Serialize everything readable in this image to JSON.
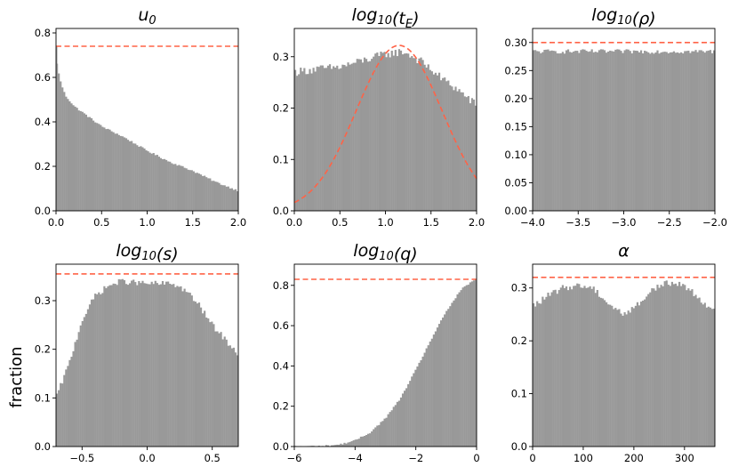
{
  "figure": {
    "ylabel": "fraction",
    "bar_color": "#999999",
    "ref_line_color": "#ff6347"
  },
  "chart_data": [
    {
      "type": "bar",
      "subtype": "histogram",
      "title": "u₀",
      "title_base": "u",
      "title_sub": "0",
      "xlim": [
        0,
        2
      ],
      "ylim": [
        0,
        0.82
      ],
      "xticks": [
        0,
        0.5,
        1,
        1.5,
        2
      ],
      "xtick_labels": [
        "0.0",
        "0.5",
        "1.0",
        "1.5",
        "2.0"
      ],
      "yticks": [
        0,
        0.2,
        0.4,
        0.6,
        0.8
      ],
      "ytick_labels": [
        "0.0",
        "0.2",
        "0.4",
        "0.6",
        "0.8"
      ],
      "reference_hline": 0.74,
      "profile_x": [
        0,
        0.01,
        0.03,
        0.05,
        0.1,
        0.2,
        0.3,
        0.5,
        0.75,
        1.0,
        1.25,
        1.5,
        1.75,
        2.0
      ],
      "profile_y": [
        0.74,
        0.66,
        0.62,
        0.58,
        0.52,
        0.47,
        0.44,
        0.38,
        0.33,
        0.27,
        0.22,
        0.18,
        0.13,
        0.09
      ],
      "n_bins": 100,
      "noise": 0.004
    },
    {
      "type": "bar",
      "subtype": "histogram",
      "title": "log₁₀(t_E)",
      "title_base": "log",
      "title_sub": "10",
      "title_arg_base": "t",
      "title_arg_sub": "E",
      "xlim": [
        0,
        2
      ],
      "ylim": [
        0,
        0.355
      ],
      "xticks": [
        0,
        0.5,
        1,
        1.5,
        2
      ],
      "xtick_labels": [
        "0.0",
        "0.5",
        "1.0",
        "1.5",
        "2.0"
      ],
      "yticks": [
        0,
        0.1,
        0.2,
        0.3
      ],
      "ytick_labels": [
        "0.0",
        "0.1",
        "0.2",
        "0.3"
      ],
      "profile_x": [
        0,
        0.2,
        0.5,
        0.8,
        1.0,
        1.2,
        1.4,
        1.6,
        1.8,
        2.0
      ],
      "profile_y": [
        0.27,
        0.275,
        0.28,
        0.295,
        0.305,
        0.31,
        0.29,
        0.26,
        0.235,
        0.205
      ],
      "n_bins": 100,
      "noise": 0.008,
      "curve": {
        "type": "gaussian",
        "peak": 0.322,
        "mean": 1.15,
        "sigma": 0.47
      }
    },
    {
      "type": "bar",
      "subtype": "histogram",
      "title": "log₁₀(ρ)",
      "title_base": "log",
      "title_sub": "10",
      "title_arg": "ρ",
      "xlim": [
        -4,
        -2
      ],
      "ylim": [
        0,
        0.325
      ],
      "xticks": [
        -4,
        -3.5,
        -3,
        -2.5,
        -2
      ],
      "xtick_labels": [
        "−4.0",
        "−3.5",
        "−3.0",
        "−2.5",
        "−2.0"
      ],
      "yticks": [
        0,
        0.05,
        0.1,
        0.15,
        0.2,
        0.25,
        0.3
      ],
      "ytick_labels": [
        "0.00",
        "0.05",
        "0.10",
        "0.15",
        "0.20",
        "0.25",
        "0.30"
      ],
      "reference_hline": 0.3,
      "profile_x": [
        -4,
        -2
      ],
      "profile_y": [
        0.284,
        0.284
      ],
      "n_bins": 100,
      "noise": 0.004
    },
    {
      "type": "bar",
      "subtype": "histogram",
      "title": "log₁₀(s)",
      "title_base": "log",
      "title_sub": "10",
      "title_arg": "s",
      "xlim": [
        -0.7,
        0.7
      ],
      "ylim": [
        0,
        0.375
      ],
      "xticks": [
        -0.5,
        0,
        0.5
      ],
      "xtick_labels": [
        "−0.5",
        "0.0",
        "0.5"
      ],
      "yticks": [
        0,
        0.1,
        0.2,
        0.3
      ],
      "ytick_labels": [
        "0.0",
        "0.1",
        "0.2",
        "0.3"
      ],
      "reference_hline": 0.355,
      "profile_x": [
        -0.7,
        -0.6,
        -0.5,
        -0.4,
        -0.3,
        -0.2,
        0,
        0.2,
        0.3,
        0.4,
        0.5,
        0.6,
        0.7
      ],
      "profile_y": [
        0.1,
        0.17,
        0.26,
        0.31,
        0.33,
        0.34,
        0.335,
        0.335,
        0.32,
        0.29,
        0.25,
        0.22,
        0.19
      ],
      "n_bins": 100,
      "noise": 0.006
    },
    {
      "type": "bar",
      "subtype": "histogram",
      "title": "log₁₀(q)",
      "title_base": "log",
      "title_sub": "10",
      "title_arg": "q",
      "xlim": [
        -6,
        0
      ],
      "ylim": [
        0,
        0.905
      ],
      "xticks": [
        -6,
        -4,
        -2,
        0
      ],
      "xtick_labels": [
        "−6",
        "−4",
        "−2",
        "0"
      ],
      "yticks": [
        0,
        0.2,
        0.4,
        0.6,
        0.8
      ],
      "ytick_labels": [
        "0.0",
        "0.2",
        "0.4",
        "0.6",
        "0.8"
      ],
      "reference_hline": 0.83,
      "profile_x": [
        -6,
        -5,
        -4.5,
        -4,
        -3.5,
        -3,
        -2.5,
        -2,
        -1.5,
        -1,
        -0.5,
        0
      ],
      "profile_y": [
        0,
        0.003,
        0.01,
        0.03,
        0.07,
        0.14,
        0.24,
        0.38,
        0.53,
        0.67,
        0.78,
        0.835
      ],
      "n_bins": 100,
      "noise": 0.004
    },
    {
      "type": "bar",
      "subtype": "histogram",
      "title": "α",
      "title_base": "α",
      "xlim": [
        0,
        360
      ],
      "ylim": [
        0,
        0.345
      ],
      "xticks": [
        0,
        100,
        200,
        300
      ],
      "xtick_labels": [
        "0",
        "100",
        "200",
        "300"
      ],
      "yticks": [
        0,
        0.1,
        0.2,
        0.3
      ],
      "ytick_labels": [
        "0.0",
        "0.1",
        "0.2",
        "0.3"
      ],
      "reference_hline": 0.32,
      "profile_x": [
        0,
        30,
        60,
        90,
        120,
        150,
        180,
        210,
        240,
        270,
        300,
        330,
        360
      ],
      "profile_y": [
        0.265,
        0.285,
        0.3,
        0.305,
        0.3,
        0.27,
        0.25,
        0.27,
        0.3,
        0.31,
        0.305,
        0.28,
        0.255
      ],
      "n_bins": 100,
      "noise": 0.006
    }
  ]
}
